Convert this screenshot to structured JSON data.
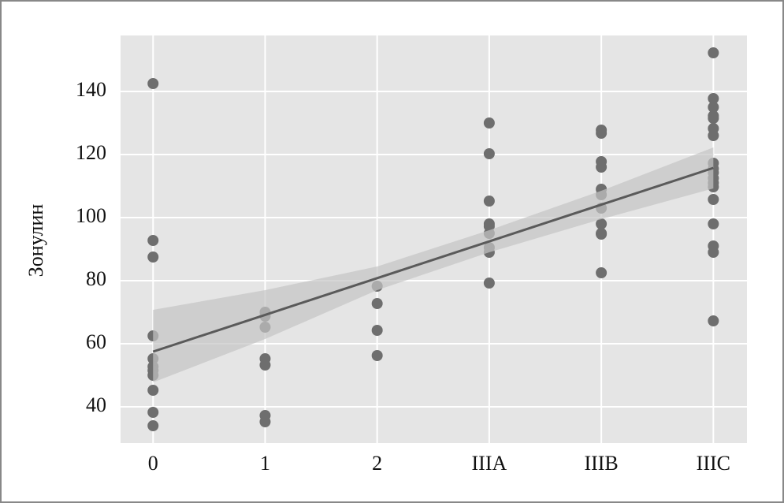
{
  "chart_data": {
    "type": "scatter",
    "y_label": "Зонулин",
    "x": [
      0,
      0,
      0,
      0,
      0,
      0,
      0,
      0,
      0,
      0,
      0,
      1,
      1,
      1,
      1,
      1,
      1,
      1,
      2,
      2,
      2,
      2,
      3,
      3,
      3,
      3,
      3,
      3,
      3,
      3,
      3,
      4,
      4,
      4,
      4,
      4,
      4,
      4,
      4,
      4,
      4,
      4,
      5,
      5,
      5,
      5,
      5,
      5,
      5,
      5,
      5,
      5,
      5,
      5,
      5,
      5,
      5,
      5,
      5,
      5
    ],
    "y": [
      142.5,
      92.75,
      87.5,
      62.5,
      55.25,
      52.75,
      51.5,
      50,
      45.25,
      38.25,
      34,
      70,
      68.75,
      65.25,
      55.25,
      53.25,
      37.25,
      35.25,
      78.25,
      72.75,
      64.25,
      56.25,
      130,
      120.25,
      105.25,
      98,
      97.25,
      95,
      90.5,
      89,
      79.25,
      127.75,
      126.75,
      117.75,
      116,
      109,
      107.25,
      103,
      98,
      95,
      94.75,
      82.5,
      152.25,
      137.75,
      135,
      132.25,
      131.5,
      128.25,
      126,
      117.25,
      115.5,
      114.25,
      112.5,
      111,
      109.75,
      105.75,
      98,
      91,
      89,
      67.25
    ],
    "color": "#6e6e6e",
    "fit": {
      "x": [
        0,
        1,
        2,
        3,
        4,
        5
      ],
      "values": [
        57.5,
        69.15,
        80.8,
        92.45,
        104.1,
        115.75
      ],
      "lower": [
        47.75,
        61.5,
        77,
        89,
        99.5,
        109.25
      ],
      "upper": [
        70.75,
        77,
        84.5,
        96,
        108.5,
        122.25
      ],
      "color": "#5a5a5a",
      "band_color": "#c4c4c4"
    },
    "xlim": [
      -0.29,
      5.3
    ],
    "ylim": [
      28.5,
      157.75
    ],
    "xticks": [
      0,
      1,
      2,
      {
        "value": 3,
        "label": "IIIA"
      },
      {
        "value": 4,
        "label": "IIIB"
      },
      {
        "value": 5,
        "label": "IIIC"
      }
    ],
    "yticks": [
      40,
      60,
      80,
      100,
      120,
      140
    ],
    "grid": true
  }
}
